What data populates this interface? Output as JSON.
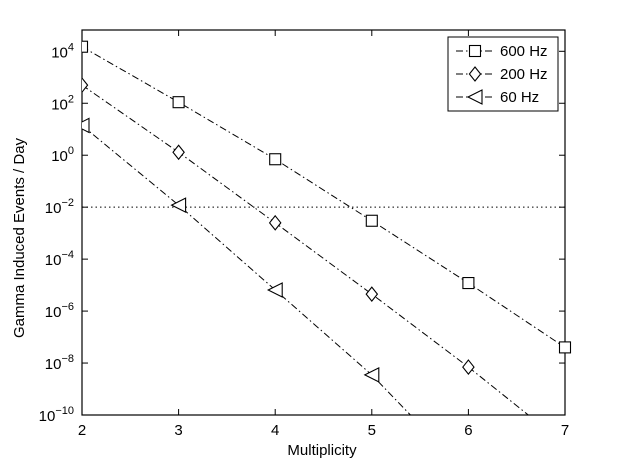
{
  "chart_data": {
    "type": "line",
    "title": "",
    "xlabel": "Multiplicity",
    "ylabel": "Gamma Induced Events / Day",
    "xlim": [
      2,
      7
    ],
    "ylim_exponent": [
      -10,
      5
    ],
    "yscale": "log",
    "grid": false,
    "legend_position": "top-right",
    "x_ticks": [
      "2",
      "3",
      "4",
      "5",
      "6",
      "7"
    ],
    "y_ticks": [
      {
        "exp": -10,
        "label": "10",
        "sup": "−10"
      },
      {
        "exp": -8,
        "label": "10",
        "sup": "−8"
      },
      {
        "exp": -6,
        "label": "10",
        "sup": "−6"
      },
      {
        "exp": -4,
        "label": "10",
        "sup": "−4"
      },
      {
        "exp": -2,
        "label": "10",
        "sup": "−2"
      },
      {
        "exp": 0,
        "label": "10",
        "sup": "0"
      },
      {
        "exp": 2,
        "label": "10",
        "sup": "2"
      },
      {
        "exp": 4,
        "label": "10",
        "sup": "4"
      }
    ],
    "reference_line": {
      "y": 0.01,
      "style": "dotted"
    },
    "series": [
      {
        "name": "600 Hz",
        "marker": "square",
        "x": [
          2,
          3,
          4,
          5,
          6,
          7
        ],
        "y": [
          15000,
          110,
          0.7,
          0.003,
          1.2e-05,
          4e-08
        ]
      },
      {
        "name": "200 Hz",
        "marker": "diamond",
        "x": [
          2,
          3,
          4,
          5,
          6,
          6.62
        ],
        "y": [
          500,
          1.3,
          0.0025,
          4.5e-06,
          7e-09,
          1e-10
        ],
        "markers_on": [
          true,
          true,
          true,
          true,
          true,
          false
        ]
      },
      {
        "name": "60 Hz",
        "marker": "triangle-left",
        "x": [
          2,
          3,
          4,
          5,
          5.4
        ],
        "y": [
          14,
          0.012,
          6.5e-06,
          3.5e-09,
          1e-10
        ],
        "markers_on": [
          true,
          true,
          true,
          true,
          false
        ]
      }
    ],
    "colors": {
      "line": "#000000",
      "background": "#ffffff"
    }
  }
}
